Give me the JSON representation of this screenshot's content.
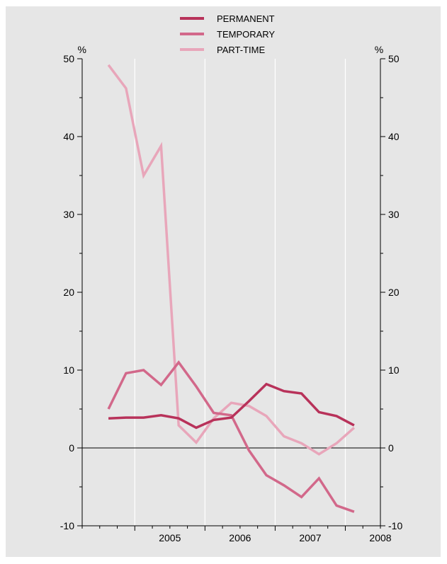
{
  "chart_data": {
    "type": "line",
    "title": "",
    "xlabel": "",
    "ylabel_left": "%",
    "ylabel_right": "%",
    "ylim": [
      -10,
      50
    ],
    "yticks": [
      -10,
      0,
      10,
      20,
      30,
      40,
      50
    ],
    "ytick_labels": [
      "-10",
      "0",
      "10",
      "20",
      "30",
      "40",
      "50"
    ],
    "x_categories": [
      "2005",
      "2006",
      "2007",
      "2008"
    ],
    "x_range": [
      2004.25,
      2008.5
    ],
    "grid": "vertical lines between years",
    "legend_position": "top-center",
    "series": [
      {
        "name": "PERMANENT",
        "color": "#b8325a",
        "x": [
          2004.625,
          2004.875,
          2005.125,
          2005.375,
          2005.625,
          2005.875,
          2006.125,
          2006.375,
          2006.625,
          2006.875,
          2007.125,
          2007.375,
          2007.625,
          2007.875,
          2008.125
        ],
        "values": [
          3.8,
          3.9,
          3.9,
          4.2,
          3.8,
          2.6,
          3.6,
          3.9,
          6.0,
          8.2,
          7.3,
          7.0,
          4.6,
          4.1,
          2.9
        ]
      },
      {
        "name": "TEMPORARY",
        "color": "#d2688a",
        "x": [
          2004.625,
          2004.875,
          2005.125,
          2005.375,
          2005.625,
          2005.875,
          2006.125,
          2006.375,
          2006.625,
          2006.875,
          2007.125,
          2007.375,
          2007.625,
          2007.875,
          2008.125
        ],
        "values": [
          5.0,
          9.6,
          10.0,
          8.1,
          11.0,
          7.9,
          4.5,
          4.2,
          -0.3,
          -3.5,
          -4.8,
          -6.3,
          -3.9,
          -7.4,
          -8.2
        ]
      },
      {
        "name": "PART-TIME",
        "color": "#e8a6ba",
        "x": [
          2004.625,
          2004.875,
          2005.125,
          2005.375,
          2005.625,
          2005.875,
          2006.125,
          2006.375,
          2006.625,
          2006.875,
          2007.125,
          2007.375,
          2007.625,
          2007.875,
          2008.125
        ],
        "values": [
          49.2,
          46.2,
          35.0,
          38.8,
          2.9,
          0.7,
          3.8,
          5.8,
          5.4,
          4.1,
          1.5,
          0.6,
          -0.8,
          0.6,
          2.6
        ]
      }
    ]
  }
}
